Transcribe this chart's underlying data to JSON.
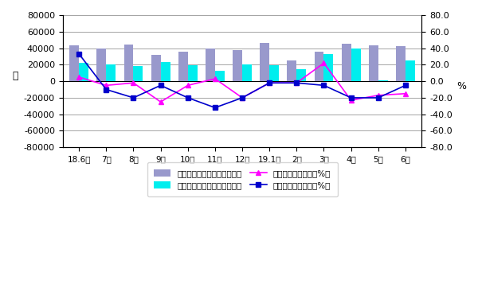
{
  "months": [
    "18.6月",
    "7月",
    "8月",
    "9月",
    "10月",
    "11月",
    "12月",
    "19.1月",
    "2月",
    "3月",
    "4月",
    "5月",
    "6月"
  ],
  "cutting_volume": [
    43000,
    40000,
    44000,
    32000,
    36000,
    40000,
    38000,
    46000,
    25000,
    36000,
    45000,
    43000,
    42000
  ],
  "forming_volume": [
    22000,
    20000,
    18000,
    23000,
    19000,
    13000,
    20000,
    19000,
    15000,
    33000,
    40000,
    1000,
    25000
  ],
  "cutting_yoy": [
    5,
    -5,
    -2,
    -25,
    -5,
    3,
    -20,
    -2,
    -2,
    22,
    -23,
    -17,
    -15
  ],
  "forming_yoy": [
    33,
    -10,
    -20,
    -5,
    -20,
    -32,
    -20,
    -2,
    -2,
    -5,
    -20,
    -20,
    -5
  ],
  "left_ylim": [
    -80000,
    80000
  ],
  "right_ylim": [
    -80.0,
    80.0
  ],
  "left_yticks": [
    -80000,
    -60000,
    -40000,
    -20000,
    0,
    20000,
    40000,
    60000,
    80000
  ],
  "right_yticks": [
    -80.0,
    -60.0,
    -40.0,
    -20.0,
    0.0,
    20.0,
    40.0,
    60.0,
    80.0
  ],
  "left_ylabel": "台",
  "right_ylabel": "%",
  "bar_color_cutting": "#9999cc",
  "bar_color_forming": "#00eeee",
  "line_color_cutting": "#ff00ff",
  "line_color_forming": "#0000cc",
  "legend_labels": [
    "金属切削机床月度产量（台）",
    "金属成形机床月度产量（台）",
    "金属切削机床同比（%）",
    "金属成形机床同比（%）"
  ],
  "bar_width": 0.35,
  "figsize": [
    6.0,
    3.81
  ],
  "dpi": 100
}
